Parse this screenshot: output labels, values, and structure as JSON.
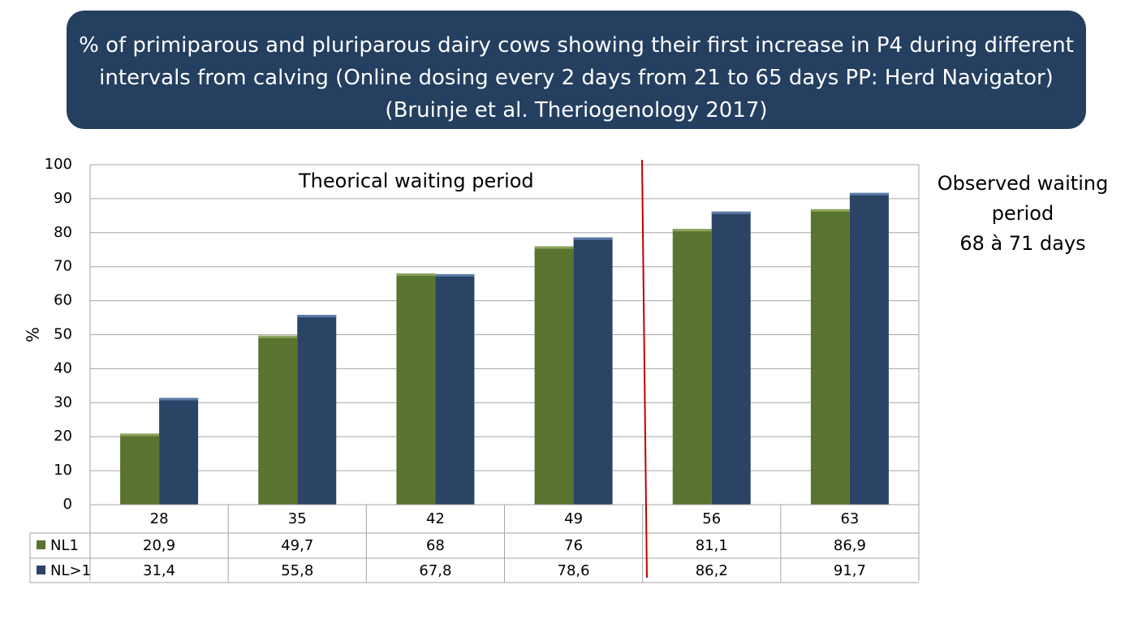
{
  "title": {
    "line1": "% of primiparous and pluriparous dairy cows showing their first increase in P4 during different",
    "line2": "intervals from calving (Online dosing every 2 days from 21 to 65 days PP: Herd Navigator)",
    "line3": "(Bruinje et al. Theriogenology 2017)"
  },
  "annotations": {
    "theoretical": "Theorical waiting period",
    "observed_line1": "Observed waiting",
    "observed_line2": "period",
    "observed_line3": "68 à 71 days"
  },
  "colors": {
    "title_bg": "#243f60",
    "nl1": "#5a732f",
    "nl1_top": "#8aa35a",
    "nl_gt1": "#2b4466",
    "nl_gt1_top": "#5b7aa8",
    "divider": "#c00000",
    "grid": "#a6a6a6"
  },
  "chart_data": {
    "type": "bar",
    "title": "% of primiparous and pluriparous dairy cows showing their first increase in P4 during different intervals from calving (Online dosing every 2 days from 21 to 65 days PP: Herd Navigator) (Bruinje et al. Theriogenology 2017)",
    "xlabel": "",
    "ylabel": "%",
    "ylim": [
      0,
      100
    ],
    "yticks": [
      0,
      10,
      20,
      30,
      40,
      50,
      60,
      70,
      80,
      90,
      100
    ],
    "categories": [
      "28",
      "35",
      "42",
      "49",
      "56",
      "63"
    ],
    "series": [
      {
        "name": "NL1",
        "values": [
          20.9,
          49.7,
          68,
          76,
          81.1,
          86.9
        ],
        "labels": [
          "20,9",
          "49,7",
          "68",
          "76",
          "81,1",
          "86,9"
        ]
      },
      {
        "name": "NL>1",
        "values": [
          31.4,
          55.8,
          67.8,
          78.6,
          86.2,
          91.7
        ],
        "labels": [
          "31,4",
          "55,8",
          "67,8",
          "78,6",
          "86,2",
          "91,7"
        ]
      }
    ],
    "grid": true,
    "legend": "data-table-left",
    "divider_between": [
      "49",
      "56"
    ]
  }
}
